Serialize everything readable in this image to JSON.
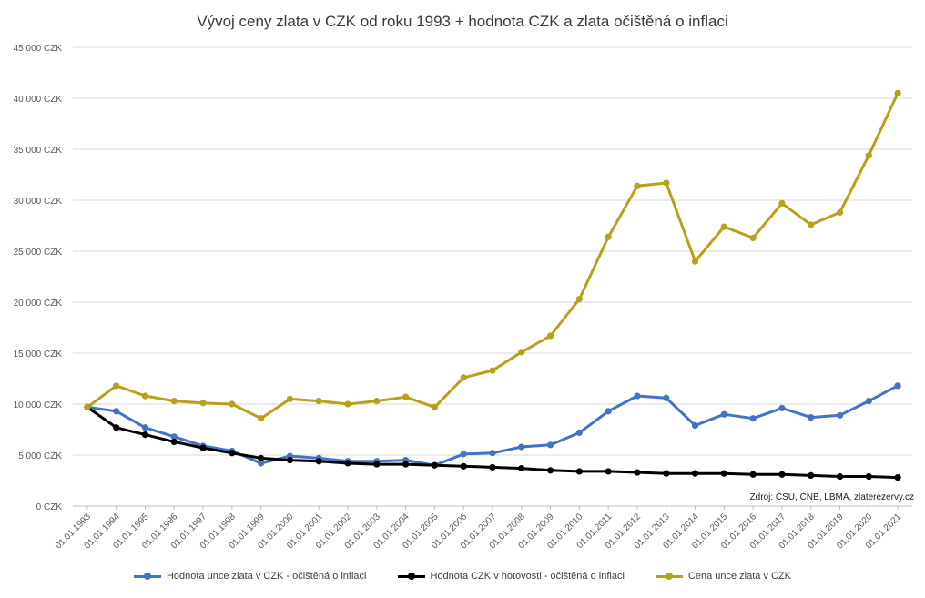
{
  "chart_data": {
    "type": "line",
    "title": "Vývoj ceny zlata v CZK od roku 1993 + hodnota CZK a zlata očištěná o inflaci",
    "categories": [
      "01.01.1993",
      "01.01.1994",
      "01.01.1995",
      "01.01.1996",
      "01.01.1997",
      "01.01.1998",
      "01.01.1999",
      "01.01.2000",
      "01.01.2001",
      "01.01.2002",
      "01.01.2003",
      "01.01.2004",
      "01.01.2005",
      "01.01.2006",
      "01.01.2007",
      "01.01.2008",
      "01.01.2009",
      "01.01.2010",
      "01.01.2011",
      "01.01.2012",
      "01.01.2013",
      "01.01.2014",
      "01.01.2015",
      "01.01.2016",
      "01.01.2017",
      "01.01.2018",
      "01.01.2019",
      "01.01.2020",
      "01.01.2021"
    ],
    "y_ticks": [
      "0 CZK",
      "5 000 CZK",
      "10 000 CZK",
      "15 000 CZK",
      "20 000 CZK",
      "25 000 CZK",
      "30 000 CZK",
      "35 000 CZK",
      "40 000 CZK",
      "45 000 CZK"
    ],
    "ylim": [
      0,
      45000
    ],
    "grid": true,
    "legend_position": "bottom",
    "source_note": "Zdroj: ČSÚ, ČNB, LBMA, zlaterezervy.cz",
    "series": [
      {
        "name": "Hodnota unce zlata v CZK - očištěná o inflaci",
        "color": "#4472C4",
        "values": [
          9700,
          9300,
          7700,
          6800,
          5900,
          5400,
          4200,
          4900,
          4700,
          4400,
          4400,
          4500,
          4000,
          5100,
          5200,
          5800,
          6000,
          7200,
          9300,
          10800,
          10600,
          7900,
          9000,
          8600,
          9600,
          8700,
          8900,
          10300,
          11800
        ]
      },
      {
        "name": "Hodnota CZK v hotovosti - očištěná o inflaci",
        "color": "#000000",
        "values": [
          9700,
          7700,
          7000,
          6300,
          5700,
          5200,
          4700,
          4500,
          4400,
          4200,
          4100,
          4100,
          4000,
          3900,
          3800,
          3700,
          3500,
          3400,
          3400,
          3300,
          3200,
          3200,
          3200,
          3100,
          3100,
          3000,
          2900,
          2900,
          2800
        ]
      },
      {
        "name": "Cena unce zlata v CZK",
        "color": "#B8A11A",
        "values": [
          9700,
          11800,
          10800,
          10300,
          10100,
          10000,
          8600,
          10500,
          10300,
          10000,
          10300,
          10700,
          9700,
          12600,
          13300,
          15100,
          16700,
          20300,
          26400,
          31400,
          31700,
          24000,
          27400,
          26300,
          29700,
          27600,
          28800,
          34400,
          40500
        ]
      }
    ]
  }
}
